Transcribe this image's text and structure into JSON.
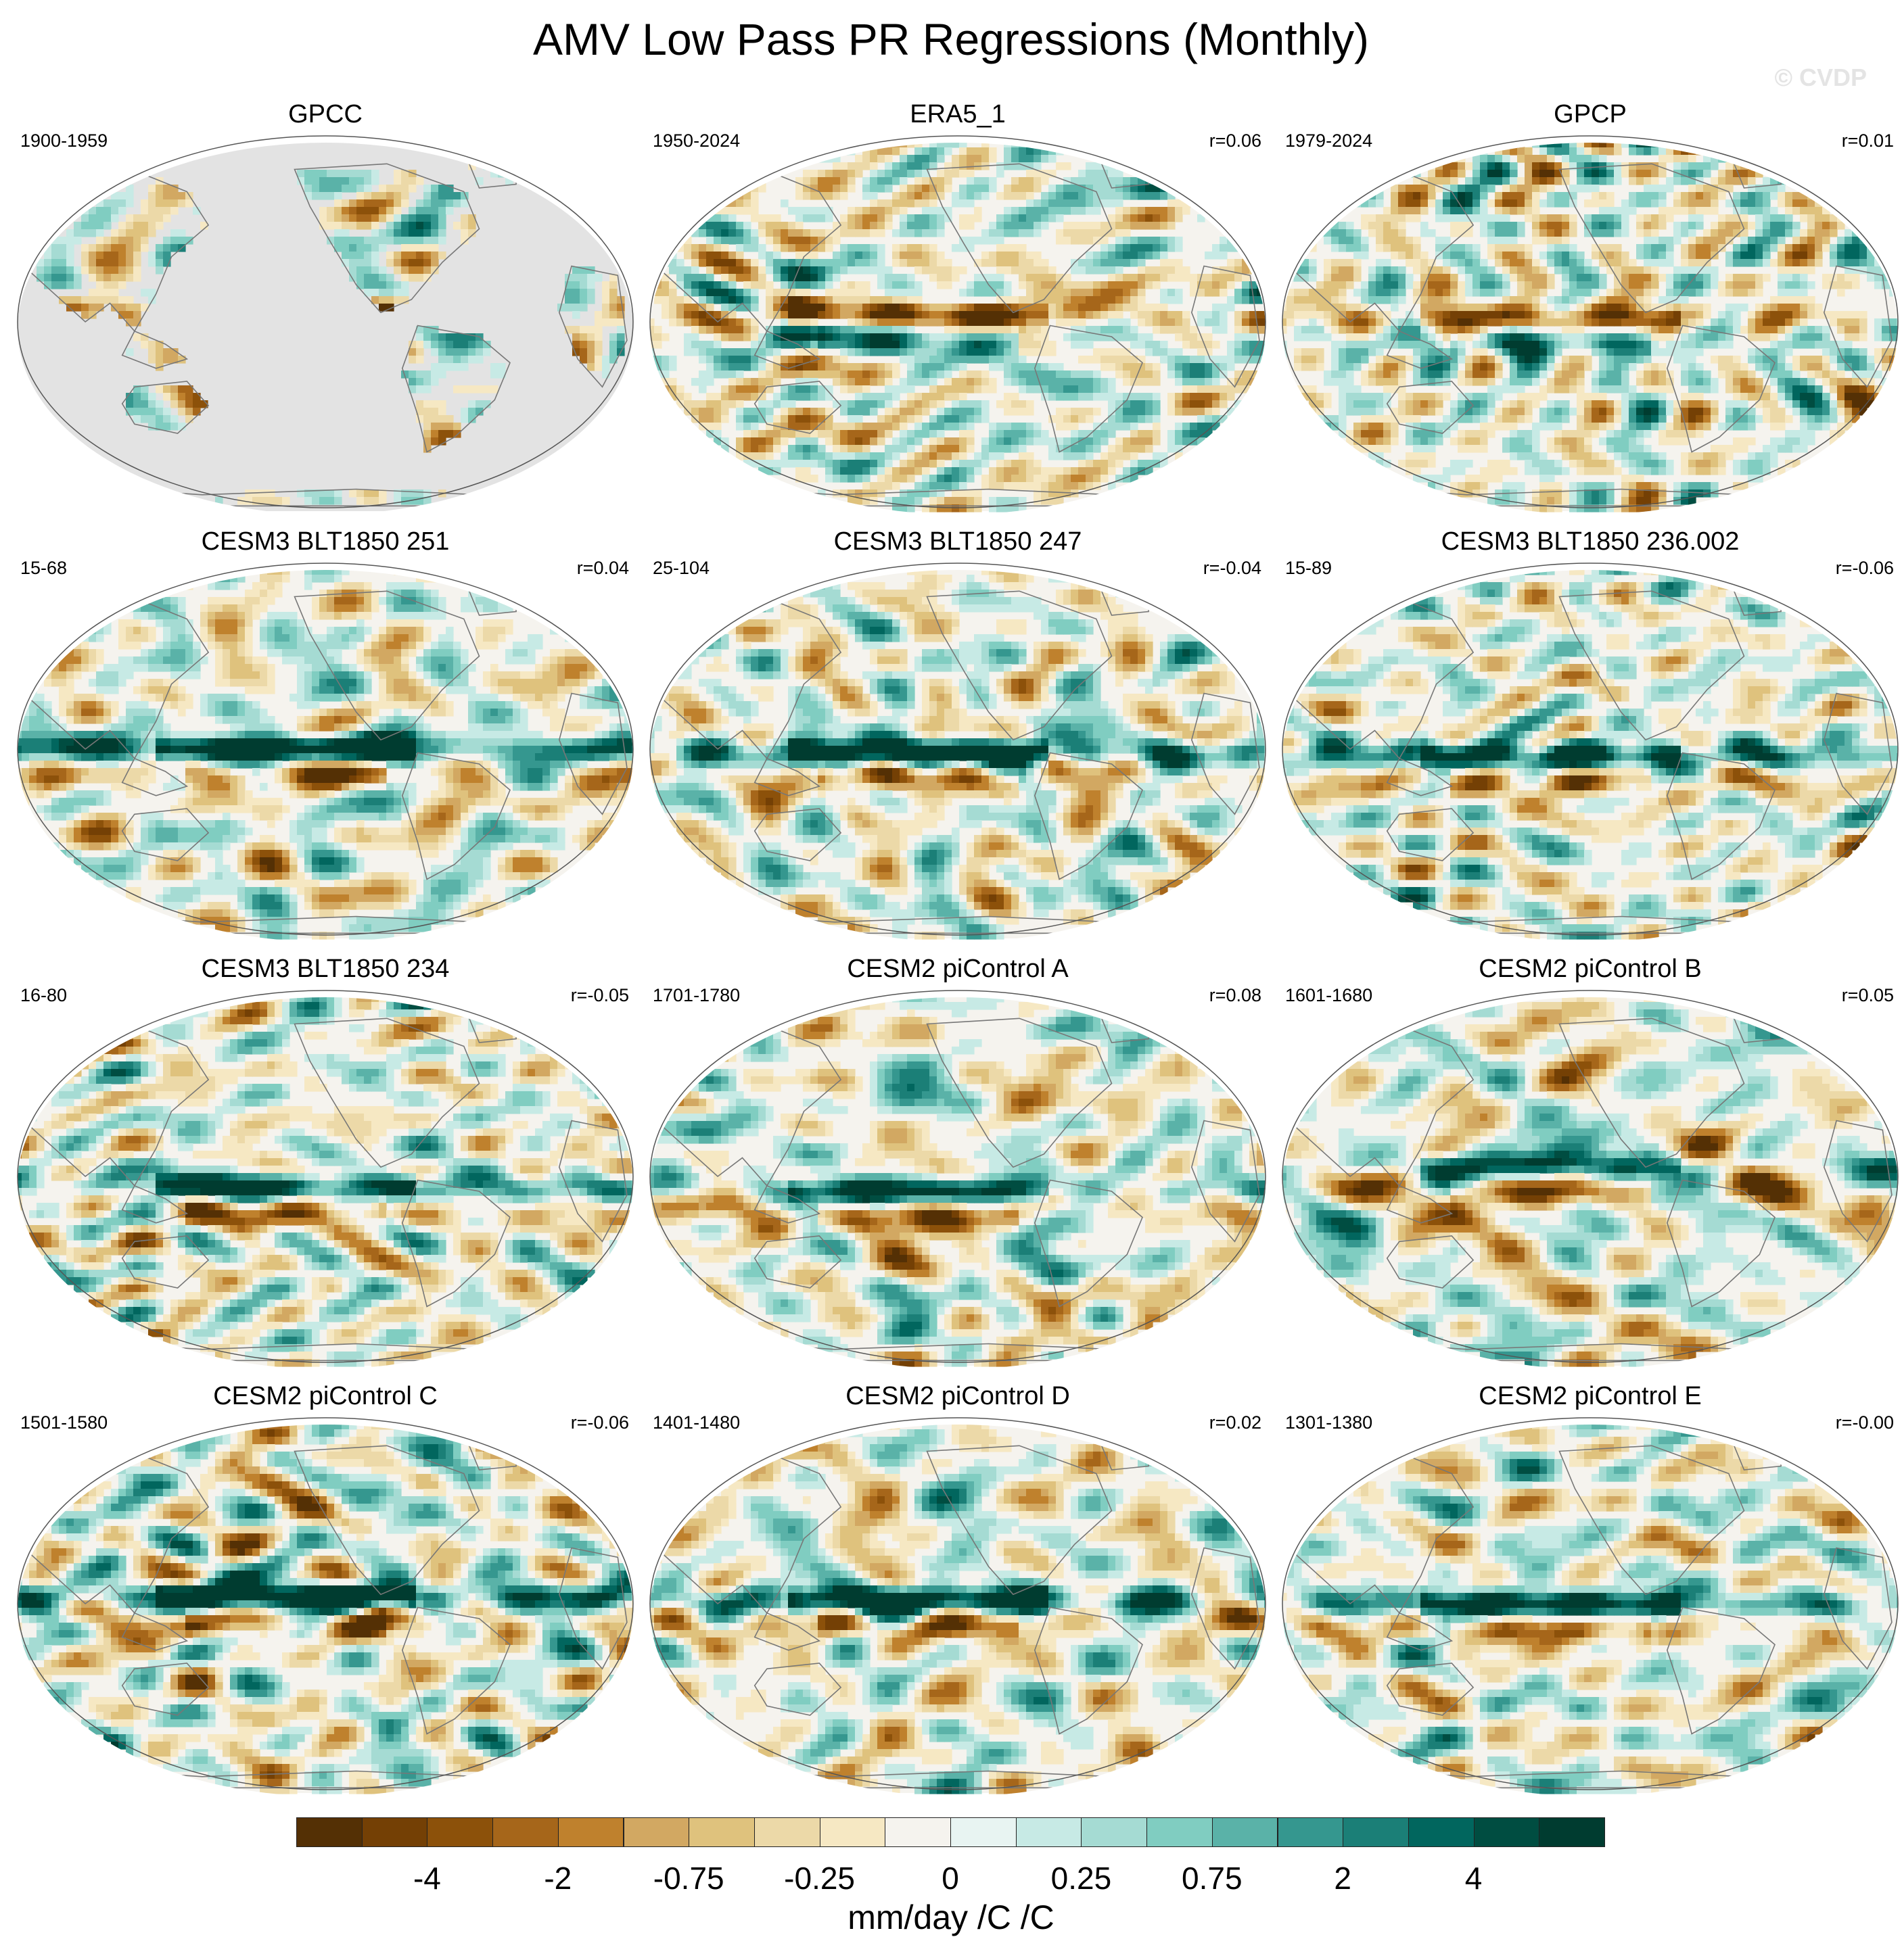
{
  "title": "AMV Low Pass PR Regressions (Monthly)",
  "watermark": "© CVDP",
  "chart_data": {
    "type": "heatmap",
    "projection": "robinson-like ellipse, Pacific centered",
    "panels": [
      {
        "name": "GPCC",
        "period": "1900-1959",
        "corr": "",
        "land_only": true
      },
      {
        "name": "ERA5_1",
        "period": "1950-2024",
        "corr": "r=0.06",
        "land_only": false
      },
      {
        "name": "GPCP",
        "period": "1979-2024",
        "corr": "r=0.01",
        "land_only": false
      },
      {
        "name": "CESM3 BLT1850 251",
        "period": "15-68",
        "corr": "r=0.04",
        "land_only": false
      },
      {
        "name": "CESM3 BLT1850 247",
        "period": "25-104",
        "corr": "r=-0.04",
        "land_only": false
      },
      {
        "name": "CESM3 BLT1850 236.002",
        "period": "15-89",
        "corr": "r=-0.06",
        "land_only": false
      },
      {
        "name": "CESM3 BLT1850 234",
        "period": "16-80",
        "corr": "r=-0.05",
        "land_only": false
      },
      {
        "name": "CESM2 piControl A",
        "period": "1701-1780",
        "corr": "r=0.08",
        "land_only": false
      },
      {
        "name": "CESM2 piControl B",
        "period": "1601-1680",
        "corr": "r=0.05",
        "land_only": false
      },
      {
        "name": "CESM2 piControl C",
        "period": "1501-1580",
        "corr": "r=-0.06",
        "land_only": false
      },
      {
        "name": "CESM2 piControl D",
        "period": "1401-1480",
        "corr": "r=0.02",
        "land_only": false
      },
      {
        "name": "CESM2 piControl E",
        "period": "1301-1380",
        "corr": "r=-0.00",
        "land_only": false
      }
    ],
    "colorbar": {
      "units": "mm/day /C /C",
      "tick_labels": [
        "-4",
        "-2",
        "-0.75",
        "-0.25",
        "0",
        "0.25",
        "0.75",
        "2",
        "4"
      ],
      "colors": [
        "#543005",
        "#744005",
        "#8c510a",
        "#a6661a",
        "#bf812d",
        "#d2a862",
        "#dfc27d",
        "#ecd9a8",
        "#f6e8c3",
        "#f5f3ee",
        "#e8f4f2",
        "#c7eae5",
        "#a5dbd3",
        "#80cdc1",
        "#5ab2a8",
        "#35978f",
        "#1b7f77",
        "#01665e",
        "#004d41",
        "#003c30"
      ]
    }
  }
}
